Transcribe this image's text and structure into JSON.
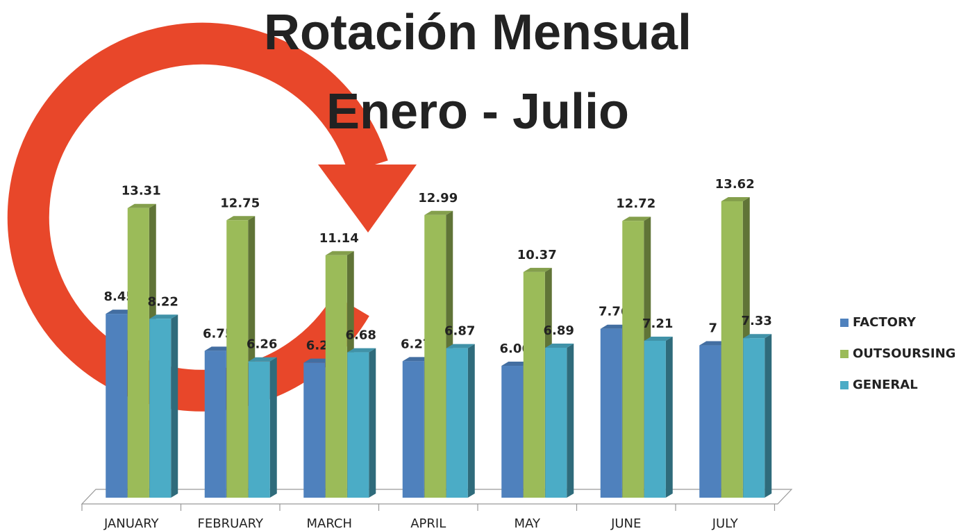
{
  "chart_data": {
    "type": "bar3d",
    "title": "Rotación Mensual",
    "subtitle": "Enero - Julio",
    "categories": [
      "JANUARY",
      "FEBRUARY",
      "MARCH",
      "APRIL",
      "MAY",
      "JUNE",
      "JULY"
    ],
    "series": [
      {
        "name": "FACTORY",
        "color": "#4f81bd",
        "values": [
          8.45,
          6.75,
          6.2,
          6.27,
          6.06,
          7.76,
          7
        ]
      },
      {
        "name": "OUTSOURSING",
        "color": "#9bbb59",
        "values": [
          13.31,
          12.75,
          11.14,
          12.99,
          10.37,
          12.72,
          13.62
        ]
      },
      {
        "name": "GENERAL",
        "color": "#4bacc6",
        "values": [
          8.22,
          6.26,
          6.68,
          6.87,
          6.89,
          7.21,
          7.33
        ]
      }
    ],
    "legend": "right"
  }
}
